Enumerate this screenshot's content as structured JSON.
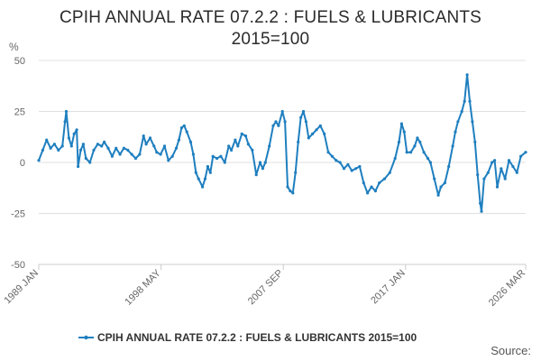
{
  "chart_data": {
    "type": "line",
    "title_line1": "CPIH ANNUAL RATE 07.2.2 : FUELS & LUBRICANTS",
    "title_line2": "2015=100",
    "ylabel": "%",
    "ylim": [
      -50,
      50
    ],
    "yticks": [
      "50",
      "25",
      "0",
      "-25",
      "-50"
    ],
    "ytick_values": [
      50,
      25,
      0,
      -25,
      -50
    ],
    "xlim": [
      1989.0,
      2026.17
    ],
    "xticks": [
      {
        "label": "1989 JAN",
        "value": 1989.0
      },
      {
        "label": "1998 MAY",
        "value": 1998.33
      },
      {
        "label": "2007 SEP",
        "value": 2007.67
      },
      {
        "label": "2017 JAN",
        "value": 2017.0
      },
      {
        "label": "2026 MAR",
        "value": 2026.17
      }
    ],
    "grid": true,
    "legend_position": "bottom",
    "series": [
      {
        "name": "CPIH ANNUAL RATE 07.2.2 : FUELS & LUBRICANTS 2015=100",
        "color": "#1f7fbf",
        "points": [
          [
            1989.0,
            1
          ],
          [
            1989.3,
            6
          ],
          [
            1989.6,
            11
          ],
          [
            1989.9,
            7
          ],
          [
            1990.2,
            9
          ],
          [
            1990.5,
            6
          ],
          [
            1990.8,
            8
          ],
          [
            1991.0,
            20
          ],
          [
            1991.1,
            25
          ],
          [
            1991.3,
            12
          ],
          [
            1991.5,
            8
          ],
          [
            1991.7,
            14
          ],
          [
            1991.9,
            16
          ],
          [
            1992.0,
            -2
          ],
          [
            1992.2,
            6
          ],
          [
            1992.4,
            9
          ],
          [
            1992.6,
            2
          ],
          [
            1992.9,
            0
          ],
          [
            1993.2,
            6
          ],
          [
            1993.5,
            9
          ],
          [
            1993.8,
            8
          ],
          [
            1994.0,
            10
          ],
          [
            1994.3,
            7
          ],
          [
            1994.6,
            3
          ],
          [
            1994.9,
            7
          ],
          [
            1995.2,
            4
          ],
          [
            1995.5,
            7
          ],
          [
            1995.8,
            6
          ],
          [
            1996.1,
            4
          ],
          [
            1996.4,
            2
          ],
          [
            1996.7,
            4
          ],
          [
            1997.0,
            13
          ],
          [
            1997.2,
            9
          ],
          [
            1997.5,
            12
          ],
          [
            1997.8,
            8
          ],
          [
            1998.0,
            5
          ],
          [
            1998.3,
            4
          ],
          [
            1998.6,
            8
          ],
          [
            1998.9,
            1
          ],
          [
            1999.2,
            3
          ],
          [
            1999.5,
            7
          ],
          [
            1999.7,
            11
          ],
          [
            1999.9,
            17
          ],
          [
            2000.1,
            18
          ],
          [
            2000.3,
            15
          ],
          [
            2000.6,
            10
          ],
          [
            2000.8,
            4
          ],
          [
            2001.0,
            -5
          ],
          [
            2001.2,
            -8
          ],
          [
            2001.5,
            -12
          ],
          [
            2001.7,
            -8
          ],
          [
            2001.9,
            -2
          ],
          [
            2002.1,
            -5
          ],
          [
            2002.3,
            3
          ],
          [
            2002.6,
            2
          ],
          [
            2002.9,
            3
          ],
          [
            2003.2,
            0
          ],
          [
            2003.5,
            8
          ],
          [
            2003.7,
            6
          ],
          [
            2004.0,
            11
          ],
          [
            2004.2,
            8
          ],
          [
            2004.5,
            14
          ],
          [
            2004.8,
            13
          ],
          [
            2005.0,
            9
          ],
          [
            2005.3,
            6
          ],
          [
            2005.6,
            -6
          ],
          [
            2005.9,
            0
          ],
          [
            2006.1,
            -3
          ],
          [
            2006.3,
            0
          ],
          [
            2006.6,
            8
          ],
          [
            2006.9,
            18
          ],
          [
            2007.1,
            20
          ],
          [
            2007.3,
            18
          ],
          [
            2007.6,
            25
          ],
          [
            2007.8,
            20
          ],
          [
            2008.0,
            -12
          ],
          [
            2008.2,
            -14
          ],
          [
            2008.4,
            -15
          ],
          [
            2008.6,
            -5
          ],
          [
            2008.8,
            10
          ],
          [
            2009.0,
            22
          ],
          [
            2009.2,
            25
          ],
          [
            2009.4,
            20
          ],
          [
            2009.6,
            12
          ],
          [
            2009.9,
            14
          ],
          [
            2010.2,
            16
          ],
          [
            2010.5,
            18
          ],
          [
            2010.8,
            14
          ],
          [
            2011.1,
            5
          ],
          [
            2011.4,
            3
          ],
          [
            2011.7,
            1
          ],
          [
            2012.0,
            0
          ],
          [
            2012.3,
            -3
          ],
          [
            2012.6,
            -1
          ],
          [
            2012.9,
            -4
          ],
          [
            2013.2,
            -3
          ],
          [
            2013.5,
            -2
          ],
          [
            2013.8,
            -10
          ],
          [
            2014.1,
            -15
          ],
          [
            2014.4,
            -12
          ],
          [
            2014.7,
            -14
          ],
          [
            2015.0,
            -10
          ],
          [
            2015.4,
            -8
          ],
          [
            2015.8,
            -5
          ],
          [
            2016.2,
            2
          ],
          [
            2016.5,
            10
          ],
          [
            2016.7,
            19
          ],
          [
            2016.9,
            15
          ],
          [
            2017.1,
            5
          ],
          [
            2017.4,
            5
          ],
          [
            2017.7,
            8
          ],
          [
            2017.9,
            12
          ],
          [
            2018.1,
            10
          ],
          [
            2018.4,
            5
          ],
          [
            2018.7,
            2
          ],
          [
            2018.9,
            0
          ],
          [
            2019.2,
            -8
          ],
          [
            2019.5,
            -16
          ],
          [
            2019.7,
            -12
          ],
          [
            2020.0,
            -10
          ],
          [
            2020.3,
            -2
          ],
          [
            2020.6,
            8
          ],
          [
            2020.8,
            15
          ],
          [
            2021.0,
            20
          ],
          [
            2021.3,
            25
          ],
          [
            2021.5,
            30
          ],
          [
            2021.7,
            43
          ],
          [
            2021.9,
            30
          ],
          [
            2022.1,
            20
          ],
          [
            2022.3,
            10
          ],
          [
            2022.5,
            -6
          ],
          [
            2022.7,
            -20
          ],
          [
            2022.8,
            -24
          ],
          [
            2023.0,
            -8
          ],
          [
            2023.3,
            -5
          ],
          [
            2023.6,
            0
          ],
          [
            2023.8,
            1
          ],
          [
            2024.0,
            -12
          ],
          [
            2024.3,
            -3
          ],
          [
            2024.6,
            -8
          ],
          [
            2024.9,
            1
          ],
          [
            2025.2,
            -2
          ],
          [
            2025.5,
            -5
          ],
          [
            2025.8,
            3
          ],
          [
            2026.17,
            5
          ]
        ]
      }
    ]
  },
  "legend": {
    "label": "CPIH ANNUAL RATE 07.2.2 : FUELS & LUBRICANTS 2015=100"
  },
  "footer": {
    "source": "Source:"
  }
}
